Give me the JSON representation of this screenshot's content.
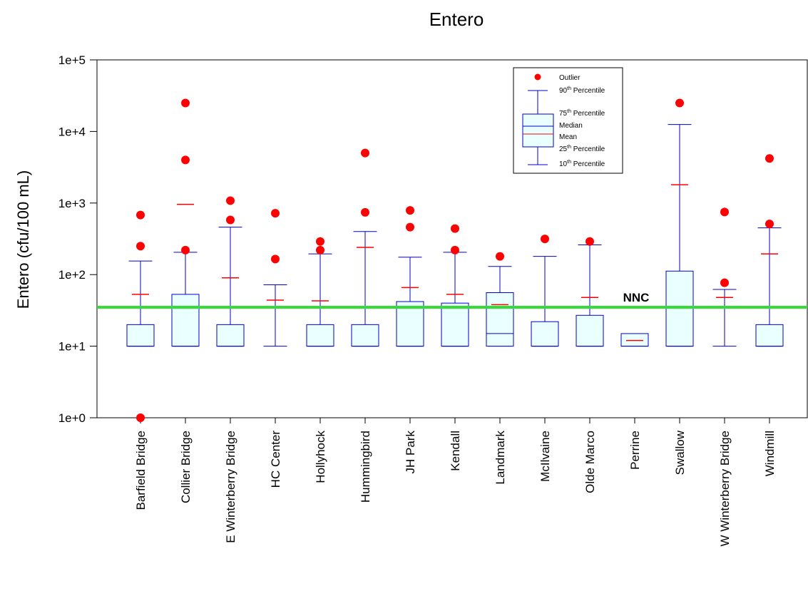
{
  "chart_data": {
    "type": "box",
    "title": "Entero",
    "ylabel": "Entero (cfu/100 mL)",
    "xlabel": "",
    "yscale": "log",
    "ylim": [
      1,
      100000
    ],
    "yticks": [
      "1e+0",
      "1e+1",
      "1e+2",
      "1e+3",
      "1e+4",
      "1e+5"
    ],
    "grid": false,
    "legend_position": "top-right",
    "colors": {
      "box_line": "#0000cc",
      "box_fill": "#eaffff",
      "median": "#0000cc",
      "mean": "#ff0000",
      "outlier": "#ff0000",
      "threshold": "#33dd33"
    },
    "threshold": {
      "label": "NNC",
      "value": 35
    },
    "legend": {
      "outlier": "Outlier",
      "p90": [
        "90",
        "th",
        " Percentile"
      ],
      "p75": [
        "75",
        "th",
        " Percentile"
      ],
      "median": "Median",
      "mean": "Mean",
      "p25": [
        "25",
        "th",
        " Percentile"
      ],
      "p10": [
        "10",
        "th",
        " Percentile"
      ]
    },
    "categories": [
      "Barfield Bridge",
      "Collier Bridge",
      "E Winterberry Bridge",
      "HC Center",
      "Hollyhock",
      "Hummingbird",
      "JH Park",
      "Kendall",
      "Landmark",
      "McIlvaine",
      "Olde Marco",
      "Perrine",
      "Swallow",
      "W Winterberry Bridge",
      "Windmill"
    ],
    "boxes": [
      {
        "p10": 10,
        "q1": 10,
        "median": 10,
        "q3": 20,
        "p90": 155,
        "mean": 53,
        "outliers": [
          680,
          250,
          1
        ]
      },
      {
        "p10": 10,
        "q1": 10,
        "median": 10,
        "q3": 53,
        "p90": 205,
        "mean": 960,
        "outliers": [
          25000,
          4000,
          220
        ]
      },
      {
        "p10": 10,
        "q1": 10,
        "median": 10,
        "q3": 20,
        "p90": 460,
        "mean": 90,
        "outliers": [
          1080,
          580
        ]
      },
      {
        "p10": 10,
        "q1": null,
        "median": null,
        "q3": null,
        "p90": 72,
        "mean": 44,
        "outliers": [
          720,
          165
        ]
      },
      {
        "p10": 10,
        "q1": 10,
        "median": 10,
        "q3": 20,
        "p90": 195,
        "mean": 43,
        "outliers": [
          290,
          220
        ]
      },
      {
        "p10": 10,
        "q1": 10,
        "median": 10,
        "q3": 20,
        "p90": 400,
        "mean": 240,
        "outliers": [
          5000,
          740
        ]
      },
      {
        "p10": 10,
        "q1": 10,
        "median": 10,
        "q3": 42,
        "p90": 175,
        "mean": 66,
        "outliers": [
          790,
          460
        ]
      },
      {
        "p10": 10,
        "q1": 10,
        "median": 10,
        "q3": 40,
        "p90": 205,
        "mean": 53,
        "outliers": [
          440,
          220
        ]
      },
      {
        "p10": 10,
        "q1": 10,
        "median": 15,
        "q3": 56,
        "p90": 130,
        "mean": 38,
        "outliers": [
          180
        ]
      },
      {
        "p10": 10,
        "q1": 10,
        "median": 10,
        "q3": 22,
        "p90": 180,
        "mean": 36,
        "outliers": [
          315
        ]
      },
      {
        "p10": 10,
        "q1": 10,
        "median": 10,
        "q3": 27,
        "p90": 260,
        "mean": 48,
        "outliers": [
          290
        ]
      },
      {
        "p10": null,
        "q1": 10,
        "median": 10,
        "q3": 15,
        "p90": null,
        "mean": 12,
        "outliers": []
      },
      {
        "p10": 10,
        "q1": 10,
        "median": 10,
        "q3": 112,
        "p90": 12500,
        "mean": 1800,
        "outliers": [
          25000
        ]
      },
      {
        "p10": 10,
        "q1": null,
        "median": null,
        "q3": null,
        "p90": 62,
        "mean": 48,
        "outliers": [
          750,
          77
        ]
      },
      {
        "p10": 10,
        "q1": 10,
        "median": 10,
        "q3": 20,
        "p90": 450,
        "mean": 195,
        "outliers": [
          4200,
          510
        ]
      }
    ]
  }
}
